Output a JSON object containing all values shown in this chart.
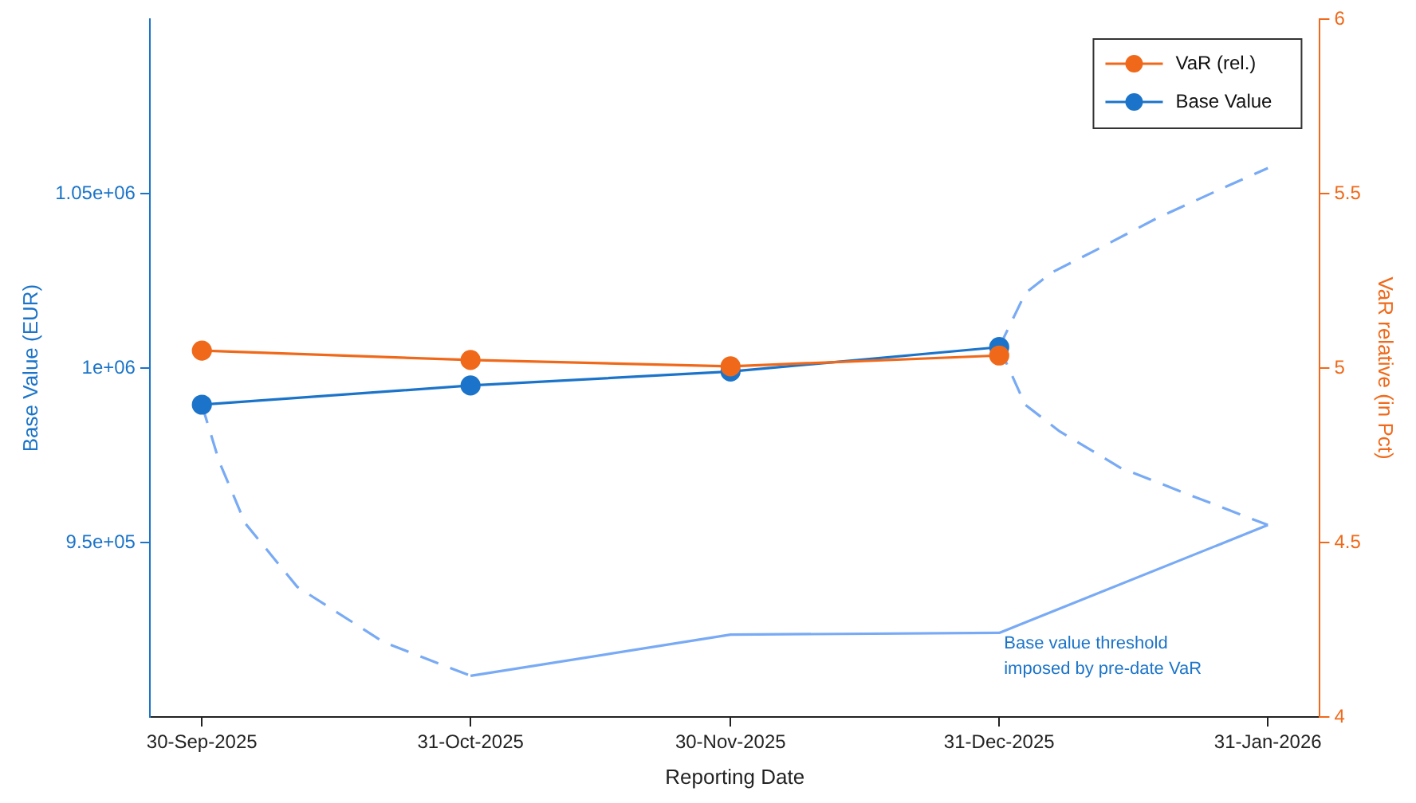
{
  "chart_data": {
    "type": "line",
    "xlabel": "Reporting Date",
    "ylabel": "Base Value (EUR)",
    "y2label": "VaR relative (in Pct)",
    "xlim": [
      "2025-09-24",
      "2026-02-06"
    ],
    "xticks": [
      {
        "value": "2025-09-30",
        "label": "30-Sep-2025"
      },
      {
        "value": "2025-10-31",
        "label": "31-Oct-2025"
      },
      {
        "value": "2025-11-30",
        "label": "30-Nov-2025"
      },
      {
        "value": "2025-12-31",
        "label": "31-Dec-2025"
      },
      {
        "value": "2026-01-31",
        "label": "31-Jan-2026"
      }
    ],
    "ylim": [
      900000,
      1100000
    ],
    "yticks": [
      {
        "value": 950000,
        "label": "9.5e+05"
      },
      {
        "value": 1000000,
        "label": "1e+06"
      },
      {
        "value": 1050000,
        "label": "1.05e+06"
      }
    ],
    "y2lim": [
      4,
      6
    ],
    "y2ticks": [
      4,
      4.5,
      5,
      5.5,
      6
    ],
    "grid": false,
    "legend": "top right",
    "series": [
      {
        "name": "VaR (rel.)",
        "color": "#f0691a",
        "axis": "y2",
        "marker": "circle",
        "line_style": "solid",
        "x": [
          "2025-09-30",
          "2025-10-31",
          "2025-11-30",
          "2025-12-31"
        ],
        "values": [
          5.05,
          5.023,
          5.005,
          5.036
        ]
      },
      {
        "name": "Base Value",
        "color": "#1b74c9",
        "marker": "circle",
        "line_style": "solid",
        "x": [
          "2025-09-30",
          "2025-10-31",
          "2025-11-30",
          "2025-12-31"
        ],
        "values": [
          989500,
          995000,
          999000,
          1006000
        ]
      },
      {
        "color": "#78aaf5",
        "marker": "none",
        "line_style": "solid",
        "x": [
          "2025-10-31",
          "2025-11-30",
          "2025-12-31",
          "2026-01-31"
        ],
        "values": [
          911800,
          923600,
          924100,
          955000
        ]
      },
      {
        "color": "#78aaf5",
        "marker": "none",
        "line_style": "dashed",
        "x": [
          "2025-09-30",
          "2025-10-02",
          "2025-10-05",
          "2025-10-11",
          "2025-10-21",
          "2025-10-31"
        ],
        "values": [
          989500,
          973200,
          955500,
          937300,
          921400,
          911800
        ]
      },
      {
        "color": "#78aaf5",
        "marker": "none",
        "line_style": "dashed",
        "x": [
          "2025-12-31",
          "2026-01-03",
          "2026-01-06",
          "2026-01-11",
          "2026-01-18",
          "2026-01-26",
          "2026-01-31"
        ],
        "values": [
          1006000,
          1021400,
          1027300,
          1033600,
          1042700,
          1051800,
          1057300
        ]
      },
      {
        "color": "#78aaf5",
        "marker": "none",
        "line_style": "dashed",
        "x": [
          "2025-12-31",
          "2026-01-03",
          "2026-01-07",
          "2026-01-14",
          "2026-01-22",
          "2026-01-31"
        ],
        "values": [
          1006000,
          989500,
          981800,
          971400,
          963600,
          955000
        ]
      }
    ],
    "annotations": [
      "Base value threshold imposed by pre-date VaR"
    ]
  }
}
